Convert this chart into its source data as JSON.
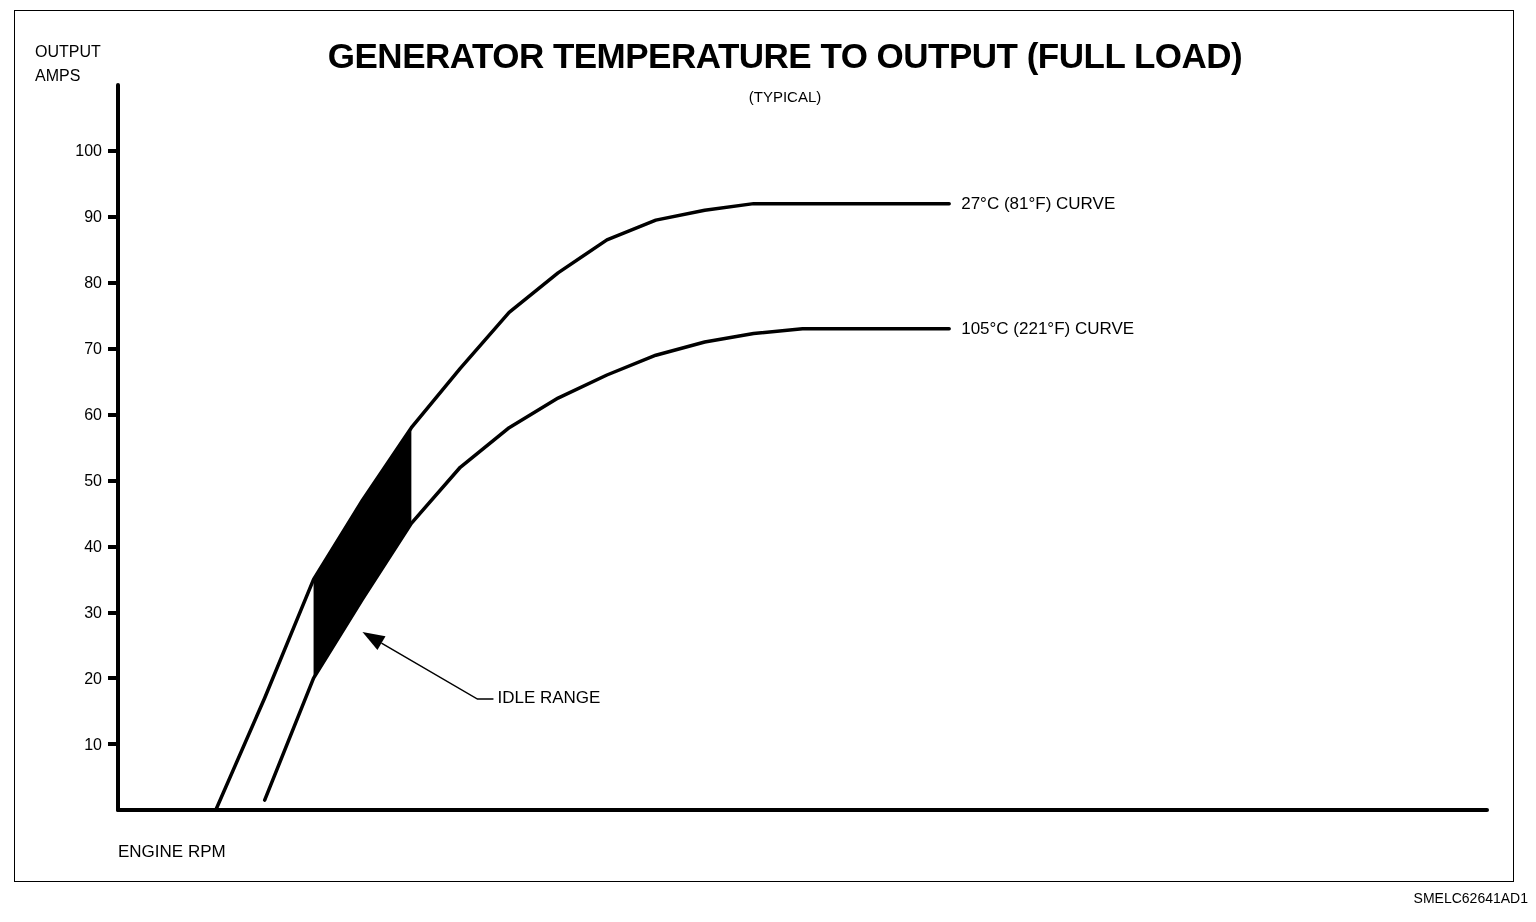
{
  "chart_data": {
    "type": "line",
    "title": "GENERATOR TEMPERATURE TO OUTPUT (FULL LOAD)",
    "subtitle": "(TYPICAL)",
    "xlabel": "ENGINE RPM",
    "ylabel": "OUTPUT AMPS",
    "categories": [
      null,
      null,
      null,
      null,
      null,
      null,
      null,
      null,
      null,
      null,
      null,
      null,
      null,
      null,
      null,
      null,
      null,
      null,
      null,
      null,
      null,
      null,
      null,
      null,
      null,
      null,
      null,
      null,
      null
    ],
    "series": [
      {
        "name": "27°C (81°F) CURVE",
        "color": "#000000",
        "values": [
          null,
          null,
          0,
          17,
          35,
          47,
          58,
          67,
          75.5,
          81.5,
          86.5,
          89.5,
          91,
          92,
          92,
          92,
          92,
          92,
          null,
          null,
          null,
          null,
          null,
          null,
          null,
          null,
          null,
          null,
          null
        ],
        "lower": [
          null,
          null,
          null,
          null,
          20,
          32,
          43.5,
          null,
          null,
          null,
          null,
          null,
          null,
          null,
          null,
          null,
          null,
          null,
          null,
          null,
          null,
          null,
          null,
          null,
          null,
          null,
          null,
          null,
          null
        ],
        "upper": [
          null,
          null,
          null,
          null,
          35,
          47,
          58,
          null,
          null,
          null,
          null,
          null,
          null,
          null,
          null,
          null,
          null,
          null,
          null,
          null,
          null,
          null,
          null,
          null,
          null,
          null,
          null,
          null,
          null
        ]
      },
      {
        "name": "105°C (221°F) CURVE",
        "color": "#000000",
        "values": [
          null,
          null,
          null,
          1.5,
          20,
          32,
          43.5,
          52,
          58,
          62.5,
          66,
          69,
          71,
          72.3,
          73,
          73,
          73,
          73,
          null,
          null,
          null,
          null,
          null,
          null,
          null,
          null,
          null,
          null,
          null
        ]
      }
    ],
    "ylim": [
      0,
      110
    ],
    "yticks": [
      10,
      20,
      30,
      40,
      50,
      60,
      70,
      80,
      90,
      100
    ],
    "grid": false,
    "legend": false,
    "marker": "none",
    "line_style": "solid",
    "annotations": [
      "IDLE RANGE",
      "SMELC62641AD1"
    ]
  }
}
